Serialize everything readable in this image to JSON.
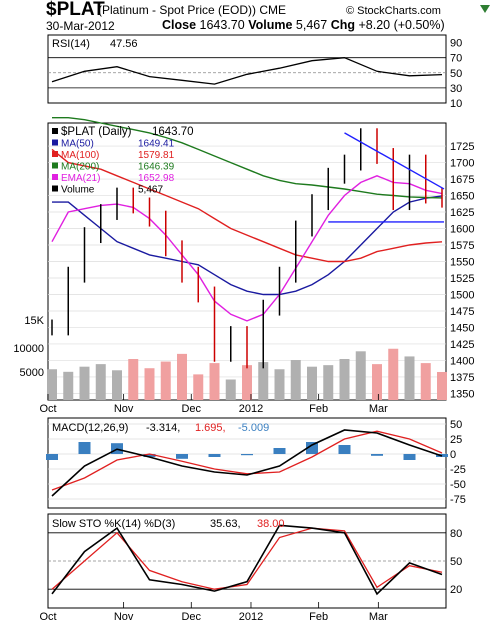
{
  "header": {
    "symbol": "$PLAT",
    "name": "(Platinum  - Spot Price (EOD))",
    "exchange": "CME",
    "date": "30-Mar-2012",
    "close_label": "Close",
    "close": "1643.70",
    "volume_label": "Volume",
    "volume": "5,467",
    "chg_label": "Chg",
    "chg": "+8.20 (+0.50%)",
    "brand": "© StockCharts.com"
  },
  "colors": {
    "up": "#000000",
    "down": "#cc0000",
    "ma50": "#1a1aa0",
    "ma100": "#e02020",
    "ma200": "#1e7a1e",
    "ema21": "#e020e0",
    "trend": "#2020ff",
    "vol_up": "#b0b0b0",
    "vol_down": "#f0a0a0",
    "macd": "#000000",
    "macd_signal": "#e02020",
    "hist": "#3a7fc0"
  },
  "chart_data": [
    {
      "type": "line",
      "title": "RSI(14) 47.56",
      "label": "RSI(14)",
      "value": "47.56",
      "ylim": [
        10,
        100
      ],
      "y_ticks": [
        90,
        70,
        50,
        30,
        10
      ],
      "x": [
        "2011-10-03",
        "2011-10-17",
        "2011-11-01",
        "2011-11-15",
        "2011-12-01",
        "2011-12-15",
        "2012-01-03",
        "2012-01-17",
        "2012-02-01",
        "2012-02-15",
        "2012-03-01",
        "2012-03-15",
        "2012-03-30"
      ],
      "series": [
        {
          "name": "RSI(14)",
          "values": [
            38,
            52,
            58,
            45,
            40,
            35,
            48,
            56,
            66,
            70,
            52,
            46,
            47.56
          ]
        }
      ]
    },
    {
      "type": "line",
      "title": "$PLAT (Daily) 1643.70",
      "ylabel": "",
      "ylim": [
        1340,
        1760
      ],
      "y_ticks": [
        1725,
        1700,
        1675,
        1650,
        1625,
        1600,
        1575,
        1550,
        1525,
        1500,
        1475,
        1450,
        1425,
        1400,
        1375,
        1350
      ],
      "x_ticks": [
        "Oct",
        "Nov",
        "Dec",
        "2012",
        "Feb",
        "Mar"
      ],
      "x": [
        "2011-10-03",
        "2011-10-10",
        "2011-10-17",
        "2011-10-24",
        "2011-11-01",
        "2011-11-08",
        "2011-11-15",
        "2011-11-22",
        "2011-12-01",
        "2011-12-08",
        "2011-12-15",
        "2011-12-22",
        "2012-01-03",
        "2012-01-10",
        "2012-01-17",
        "2012-01-24",
        "2012-02-01",
        "2012-02-08",
        "2012-02-15",
        "2012-02-22",
        "2012-03-01",
        "2012-03-08",
        "2012-03-15",
        "2012-03-22",
        "2012-03-30"
      ],
      "series": [
        {
          "name": "$PLAT (Daily)",
          "last": "1643.70",
          "values": [
            1450,
            1530,
            1590,
            1625,
            1650,
            1635,
            1615,
            1570,
            1530,
            1500,
            1410,
            1440,
            1400,
            1480,
            1530,
            1600,
            1640,
            1680,
            1700,
            1740,
            1710,
            1640,
            1700,
            1650,
            1643.7
          ]
        },
        {
          "name": "MA(50)",
          "last": "1649.41",
          "values": [
            1640,
            1640,
            1620,
            1600,
            1580,
            1570,
            1560,
            1555,
            1550,
            1545,
            1530,
            1515,
            1505,
            1500,
            1500,
            1505,
            1515,
            1530,
            1550,
            1575,
            1600,
            1625,
            1640,
            1646,
            1649.41
          ]
        },
        {
          "name": "MA(100)",
          "last": "1579.81",
          "values": [
            1720,
            1700,
            1695,
            1690,
            1680,
            1670,
            1660,
            1650,
            1640,
            1630,
            1615,
            1600,
            1590,
            1580,
            1570,
            1560,
            1555,
            1550,
            1550,
            1555,
            1565,
            1570,
            1575,
            1578,
            1579.81
          ]
        },
        {
          "name": "MA(200)",
          "last": "1646.39",
          "values": [
            1768,
            1768,
            1765,
            1760,
            1755,
            1750,
            1745,
            1738,
            1730,
            1720,
            1710,
            1700,
            1690,
            1680,
            1673,
            1668,
            1666,
            1663,
            1660,
            1656,
            1652,
            1650,
            1648,
            1647,
            1646.39
          ]
        },
        {
          "name": "EMA(21)",
          "last": "1652.98",
          "values": [
            1580,
            1625,
            1630,
            1635,
            1637,
            1632,
            1615,
            1590,
            1560,
            1530,
            1490,
            1470,
            1460,
            1470,
            1500,
            1540,
            1580,
            1620,
            1650,
            1670,
            1680,
            1670,
            1668,
            1658,
            1652.98
          ]
        }
      ],
      "volume": {
        "label": "Volume",
        "value": "5,467",
        "y_ticks": [
          "15K",
          "10000",
          "5000"
        ],
        "values": [
          6000,
          5500,
          6500,
          7000,
          5800,
          8000,
          6200,
          7500,
          9000,
          5000,
          7200,
          4000,
          6800,
          7400,
          6000,
          7800,
          6500,
          6800,
          8000,
          9500,
          7000,
          10000,
          8500,
          7200,
          5467
        ]
      }
    },
    {
      "type": "line",
      "title": "MACD(12,26,9) -3.314, 1.695, -5.009",
      "label": "MACD(12,26,9)",
      "values_text": [
        "-3.314",
        "1.695",
        "-5.009"
      ],
      "ylim": [
        -90,
        60
      ],
      "y_ticks": [
        50,
        25,
        0,
        -25,
        -50,
        -75
      ],
      "x": [
        "2011-10-03",
        "2011-10-17",
        "2011-11-01",
        "2011-11-15",
        "2011-12-01",
        "2011-12-15",
        "2012-01-03",
        "2012-01-17",
        "2012-02-01",
        "2012-02-15",
        "2012-03-01",
        "2012-03-15",
        "2012-03-30"
      ],
      "series": [
        {
          "name": "MACD",
          "values": [
            -70,
            -20,
            8,
            -5,
            -20,
            -30,
            -35,
            -20,
            15,
            40,
            35,
            15,
            -3.314
          ]
        },
        {
          "name": "Signal",
          "values": [
            -60,
            -40,
            -10,
            0,
            -12,
            -25,
            -33,
            -30,
            -5,
            25,
            38,
            25,
            1.695
          ]
        },
        {
          "name": "Histogram",
          "values": [
            -10,
            20,
            18,
            -5,
            -8,
            -5,
            -2,
            10,
            20,
            15,
            -3,
            -10,
            -5.009
          ]
        }
      ]
    },
    {
      "type": "line",
      "title": "Slow STO %K(14) %D(3) 35.63, 38.00",
      "label": "Slow STO %K(14) %D(3)",
      "values_text": [
        "35.63",
        "38.00"
      ],
      "ylim": [
        0,
        100
      ],
      "y_ticks": [
        80,
        50,
        20
      ],
      "x_ticks": [
        "Oct",
        "Nov",
        "Dec",
        "2012",
        "Feb",
        "Mar"
      ],
      "x": [
        "2011-10-03",
        "2011-10-17",
        "2011-11-01",
        "2011-11-15",
        "2011-12-01",
        "2011-12-15",
        "2012-01-03",
        "2012-01-17",
        "2012-02-01",
        "2012-02-15",
        "2012-03-01",
        "2012-03-15",
        "2012-03-30"
      ],
      "series": [
        {
          "name": "%K(14)",
          "values": [
            15,
            60,
            85,
            30,
            25,
            18,
            28,
            88,
            85,
            80,
            15,
            48,
            35.63
          ]
        },
        {
          "name": "%D(3)",
          "values": [
            20,
            50,
            80,
            40,
            28,
            20,
            25,
            75,
            85,
            82,
            22,
            45,
            38.0
          ]
        }
      ]
    }
  ]
}
